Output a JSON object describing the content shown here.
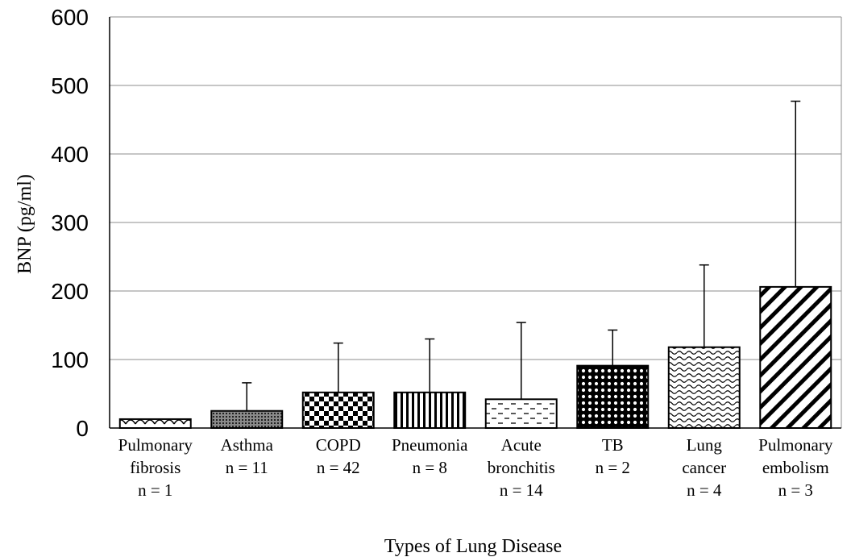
{
  "chart_data": {
    "type": "bar",
    "title": "",
    "xlabel": "Types of Lung Disease",
    "ylabel": "BNP (pg/ml)",
    "ylim": [
      0,
      600
    ],
    "yticks": [
      0,
      100,
      200,
      300,
      400,
      500,
      600
    ],
    "grid": "horizontal",
    "categories": [
      {
        "lines": [
          "Pulmonary",
          "fibrosis",
          "n = 1"
        ],
        "pattern": "scallop"
      },
      {
        "lines": [
          "Asthma",
          "n = 11"
        ],
        "pattern": "dots"
      },
      {
        "lines": [
          "COPD",
          "n = 42"
        ],
        "pattern": "checker"
      },
      {
        "lines": [
          "Pneumonia",
          "n = 8"
        ],
        "pattern": "vertical-lines"
      },
      {
        "lines": [
          "Acute",
          "bronchitis",
          "n = 14"
        ],
        "pattern": "dashes"
      },
      {
        "lines": [
          "TB",
          "n = 2"
        ],
        "pattern": "polka"
      },
      {
        "lines": [
          "Lung",
          "cancer",
          "n = 4"
        ],
        "pattern": "waves"
      },
      {
        "lines": [
          "Pulmonary",
          "embolism",
          "n = 3"
        ],
        "pattern": "diagonal"
      }
    ],
    "values": [
      13,
      25,
      52,
      52,
      42,
      91,
      118,
      206
    ],
    "error_upper": [
      13,
      66,
      124,
      130,
      154,
      143,
      238,
      477
    ]
  }
}
